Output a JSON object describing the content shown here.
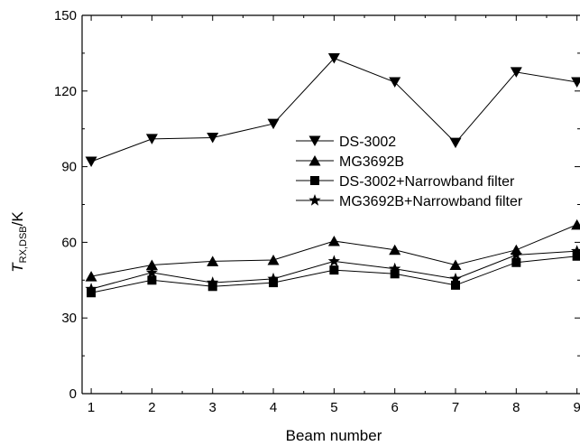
{
  "chart_data": {
    "type": "line",
    "title": "",
    "xlabel": "Beam number",
    "ylabel_main": "T",
    "ylabel_sub": "RX,DSB",
    "ylabel_unit": "/K",
    "x": [
      1,
      2,
      3,
      4,
      5,
      6,
      7,
      8,
      9
    ],
    "xlim": [
      0.85,
      9.05
    ],
    "ylim": [
      0,
      150
    ],
    "xticks": [
      "1",
      "2",
      "3",
      "4",
      "5",
      "6",
      "7",
      "8",
      "9"
    ],
    "yticks": [
      "0",
      "30",
      "60",
      "90",
      "120",
      "150"
    ],
    "grid": false,
    "legend_position": "center-right",
    "series": [
      {
        "name": "DS-3002",
        "marker": "triangle-down",
        "values": [
          92,
          101,
          101.5,
          107,
          133,
          123.5,
          99.5,
          127.5,
          123.5
        ]
      },
      {
        "name": "MG3692B",
        "marker": "triangle-up",
        "values": [
          46.5,
          51,
          52.5,
          53,
          60.5,
          57,
          51,
          57,
          67
        ]
      },
      {
        "name": "DS-3002+Narrowband filter",
        "marker": "square",
        "values": [
          40,
          45,
          42.5,
          44,
          49,
          47.5,
          43,
          52,
          54.5
        ]
      },
      {
        "name": "MG3692B+Narrowband filter",
        "marker": "star",
        "values": [
          41.5,
          48,
          44,
          45.5,
          52.5,
          49.5,
          45.5,
          55,
          56.5
        ]
      }
    ]
  }
}
